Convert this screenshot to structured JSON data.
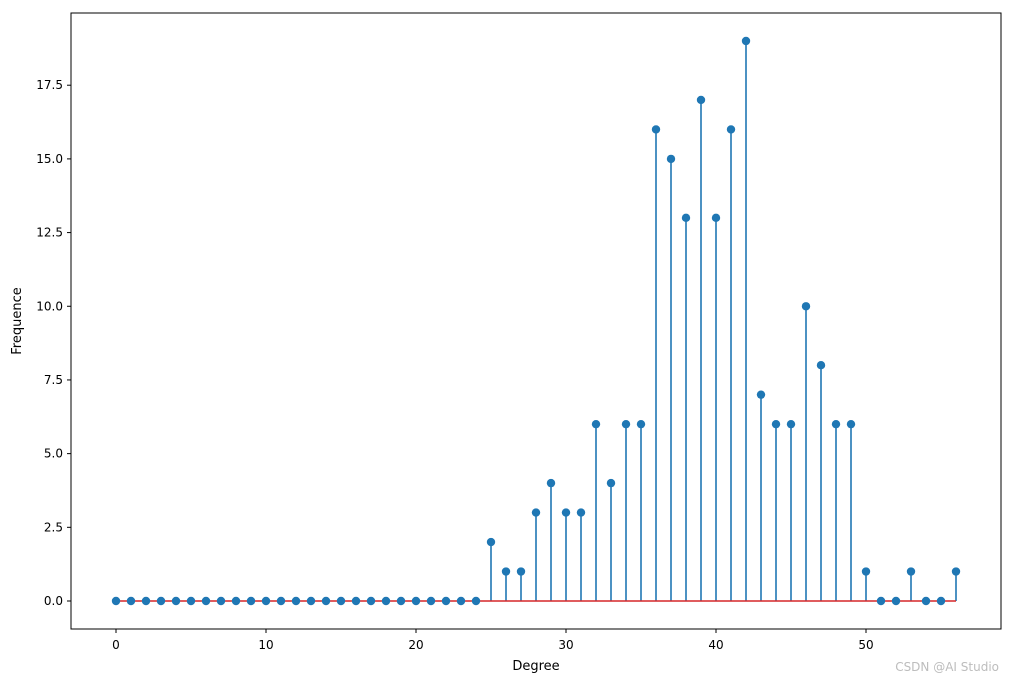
{
  "chart_data": {
    "type": "stem",
    "title": "",
    "xlabel": "Degree",
    "ylabel": "Frequence",
    "xlim": [
      -3,
      59
    ],
    "ylim": [
      -0.95,
      19.95
    ],
    "xticks": [
      0,
      10,
      20,
      30,
      40,
      50
    ],
    "yticks": [
      0.0,
      2.5,
      5.0,
      7.5,
      10.0,
      12.5,
      15.0,
      17.5
    ],
    "ytick_labels": [
      "0.0",
      "2.5",
      "5.0",
      "7.5",
      "10.0",
      "12.5",
      "15.0",
      "17.5"
    ],
    "grid": false,
    "legend": "none",
    "x": [
      0,
      1,
      2,
      3,
      4,
      5,
      6,
      7,
      8,
      9,
      10,
      11,
      12,
      13,
      14,
      15,
      16,
      17,
      18,
      19,
      20,
      21,
      22,
      23,
      24,
      25,
      26,
      27,
      28,
      29,
      30,
      31,
      32,
      33,
      34,
      35,
      36,
      37,
      38,
      39,
      40,
      41,
      42,
      43,
      44,
      45,
      46,
      47,
      48,
      49,
      50,
      51,
      52,
      53,
      54,
      55,
      56
    ],
    "values": [
      0,
      0,
      0,
      0,
      0,
      0,
      0,
      0,
      0,
      0,
      0,
      0,
      0,
      0,
      0,
      0,
      0,
      0,
      0,
      0,
      0,
      0,
      0,
      0,
      0,
      2,
      1,
      1,
      3,
      4,
      3,
      3,
      6,
      4,
      6,
      6,
      16,
      15,
      13,
      17,
      13,
      16,
      19,
      7,
      6,
      6,
      10,
      8,
      6,
      6,
      1,
      0,
      0,
      1,
      0,
      0,
      1
    ],
    "colors": {
      "stem": "#1f77b4",
      "marker": "#1f77b4",
      "baseline": "#d62728"
    }
  },
  "watermark": "CSDN @AI Studio"
}
